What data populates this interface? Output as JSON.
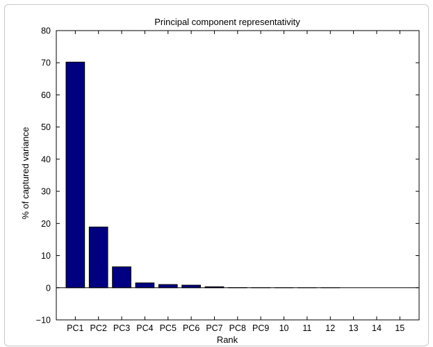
{
  "chart_data": {
    "type": "bar",
    "title": "Principal component representativity",
    "xlabel": "Rank",
    "ylabel": "% of captured variance",
    "categories": [
      "PC1",
      "PC2",
      "PC3",
      "PC4",
      "PC5",
      "PC6",
      "PC7",
      "PC8",
      "PC9",
      "10",
      "11",
      "12",
      "13",
      "14",
      "15"
    ],
    "values": [
      70.2,
      18.9,
      6.5,
      1.5,
      1.0,
      0.8,
      0.3,
      0.05,
      0.03,
      0.02,
      0.01,
      0.01,
      0.0,
      0.0,
      0.0
    ],
    "ylim": [
      -10,
      80
    ],
    "yticks": [
      "−10",
      "0",
      "10",
      "20",
      "30",
      "40",
      "50",
      "60",
      "70",
      "80"
    ],
    "bar_color": "#000080",
    "grid": false,
    "legend": "none"
  }
}
